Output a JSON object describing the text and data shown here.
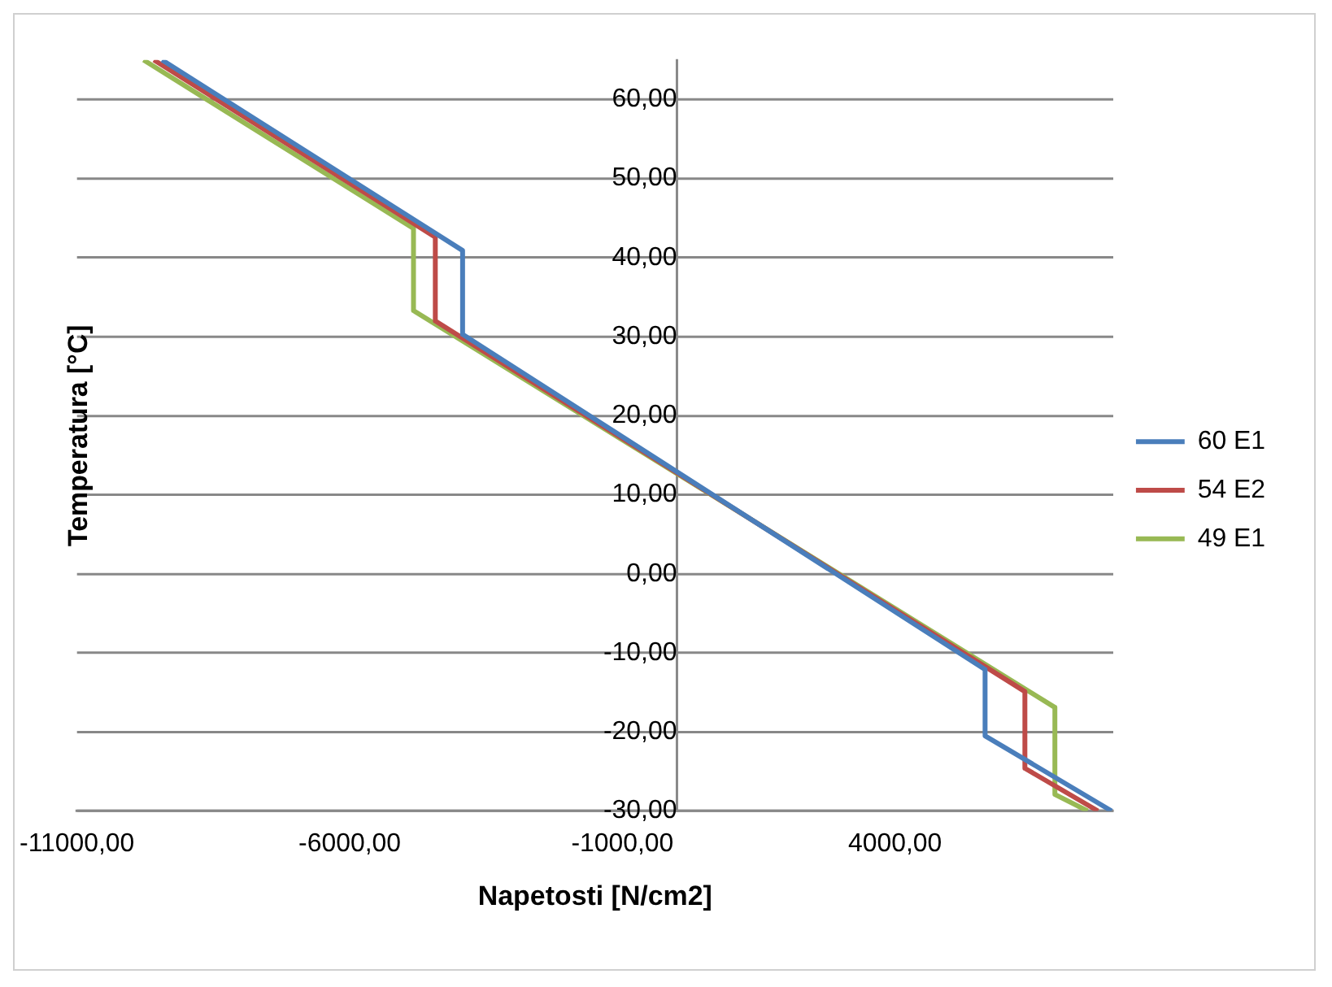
{
  "chart_data": {
    "type": "line",
    "xlabel": "Napetosti [N/cm2]",
    "ylabel": "Temperatura [°C]",
    "xlim": [
      -11000,
      8000
    ],
    "xticks": [
      {
        "value": -11000,
        "label": "-11000,00"
      },
      {
        "value": -6000,
        "label": "-6000,00"
      },
      {
        "value": -1000,
        "label": "-1000,00"
      },
      {
        "value": 4000,
        "label": "4000,00"
      }
    ],
    "ylim": [
      -30,
      65
    ],
    "yticks": [
      {
        "value": -30,
        "label": "-30,00"
      },
      {
        "value": -20,
        "label": "-20,00"
      },
      {
        "value": -10,
        "label": "-10,00"
      },
      {
        "value": 0,
        "label": "0,00"
      },
      {
        "value": 10,
        "label": "10,00"
      },
      {
        "value": 20,
        "label": "20,00"
      },
      {
        "value": 30,
        "label": "30,00"
      },
      {
        "value": 40,
        "label": "40,00"
      },
      {
        "value": 50,
        "label": "50,00"
      },
      {
        "value": 60,
        "label": "60,00"
      }
    ],
    "grid": "y",
    "legend": "right",
    "marker": "none",
    "line_style": "solid",
    "series": [
      {
        "name": "60 E1",
        "color": "#4a7ebb",
        "x": [
          -9440,
          -3930,
          -3930,
          5650,
          5650,
          7970
        ],
        "values": [
          65,
          40.9,
          30.3,
          -12.1,
          -20.5,
          -30
        ]
      },
      {
        "name": "54 E2",
        "color": "#be4b48",
        "x": [
          -9590,
          -4430,
          -4430,
          6380,
          6380,
          7720
        ],
        "values": [
          65,
          42.6,
          32,
          -14.9,
          -24.6,
          -30
        ]
      },
      {
        "name": "49 E1",
        "color": "#98b954",
        "x": [
          -9780,
          -4830,
          -4830,
          6930,
          6930,
          7530
        ],
        "values": [
          65,
          43.7,
          33.3,
          -16.9,
          -27.9,
          -30
        ]
      }
    ]
  }
}
